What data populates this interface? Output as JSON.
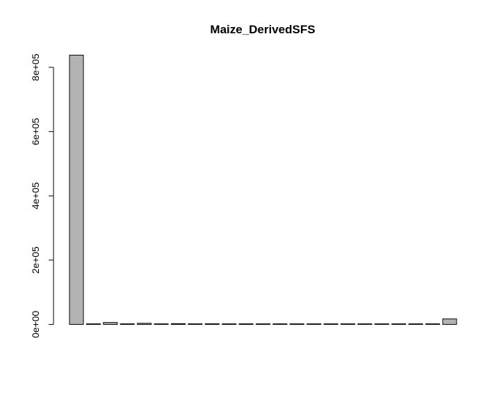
{
  "chart_data": {
    "type": "bar",
    "title": "Maize_DerivedSFS",
    "xlabel": "",
    "ylabel": "",
    "ylim": [
      0,
      840000
    ],
    "yticks": [
      0,
      200000,
      400000,
      600000,
      800000
    ],
    "ytick_labels": [
      "0e+00",
      "2e+05",
      "4e+05",
      "6e+05",
      "8e+05"
    ],
    "bar_color": "#b3b3b3",
    "bar_border": "#000000",
    "grid": false,
    "legend": "none",
    "values": [
      838000,
      600,
      6000,
      1200,
      3500,
      900,
      2400,
      700,
      1900,
      600,
      1800,
      600,
      1500,
      600,
      1500,
      600,
      1400,
      600,
      1500,
      600,
      1400,
      600,
      17000
    ]
  }
}
